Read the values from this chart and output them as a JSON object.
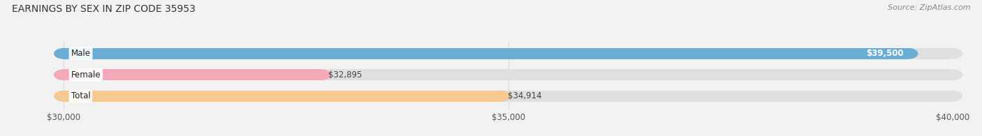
{
  "title": "EARNINGS BY SEX IN ZIP CODE 35953",
  "source": "Source: ZipAtlas.com",
  "categories": [
    "Male",
    "Female",
    "Total"
  ],
  "values": [
    39500,
    32895,
    34914
  ],
  "bar_colors": [
    "#6aaed6",
    "#f4a9b8",
    "#f5c990"
  ],
  "xmin": 30000,
  "xmax": 40000,
  "xticks": [
    30000,
    35000,
    40000
  ],
  "xtick_labels": [
    "$30,000",
    "$35,000",
    "$40,000"
  ],
  "background_color": "#f2f2f2",
  "bar_bg_color": "#e0e0e0",
  "title_fontsize": 10,
  "source_fontsize": 8,
  "tick_fontsize": 8.5,
  "label_fontsize": 8.5,
  "cat_fontsize": 8.5
}
